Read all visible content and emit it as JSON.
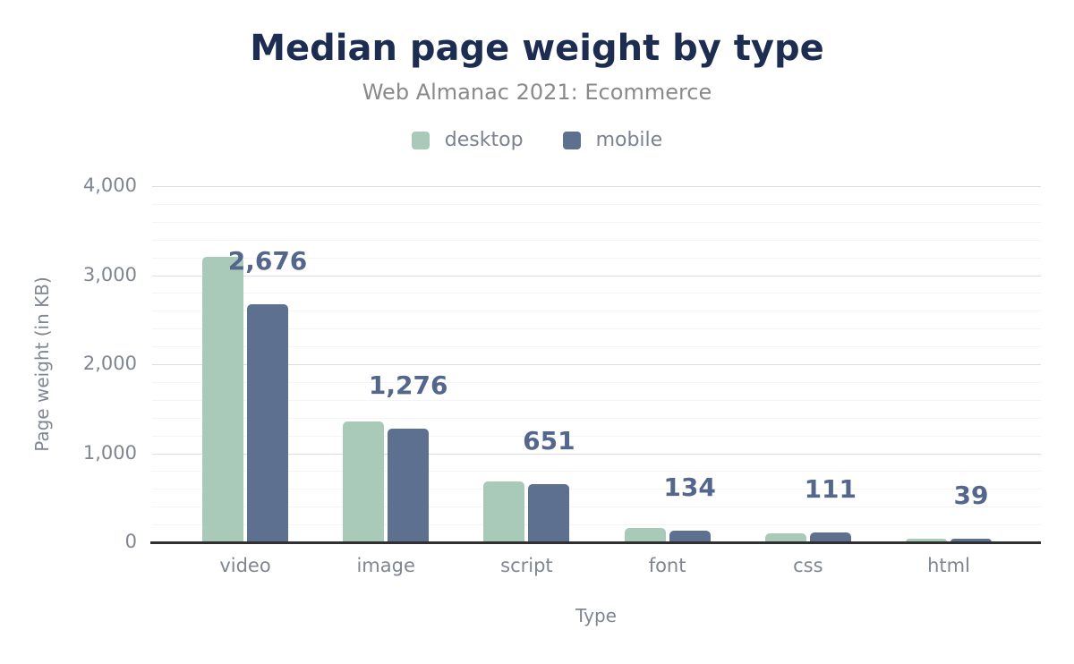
{
  "chart_data": {
    "type": "bar",
    "title": "Median page weight by type",
    "subtitle": "Web Almanac 2021: Ecommerce",
    "xlabel": "Type",
    "ylabel": "Page weight (in KB)",
    "categories": [
      "video",
      "image",
      "script",
      "font",
      "css",
      "html"
    ],
    "series": [
      {
        "name": "desktop",
        "color": "#a9cab8",
        "values": [
          3210,
          1356,
          680,
          158,
          105,
          42
        ],
        "values_estimated_from_bar_heights": true
      },
      {
        "name": "mobile",
        "color": "#5e7090",
        "values": [
          2676,
          1276,
          651,
          134,
          111,
          39
        ],
        "value_labels": [
          "2,676",
          "1,276",
          "651",
          "134",
          "111",
          "39"
        ]
      }
    ],
    "ylim": [
      0,
      4000
    ],
    "yticks": {
      "values": [
        0,
        1000,
        2000,
        3000,
        4000
      ],
      "labels": [
        "0",
        "1,000",
        "2,000",
        "3,000",
        "4,000"
      ]
    },
    "minor_grid_step": 200,
    "grid": true,
    "legend_position": "top",
    "value_labels_series": "mobile"
  },
  "colors": {
    "background": "#ffffff",
    "title": "#1d2d51",
    "subtitle": "#8a8a8a",
    "axis_text": "#7f8692",
    "legend_text": "#7b8290",
    "data_label": "#54668c",
    "major_grid": "#dedede",
    "minor_grid": "#f4f4f4",
    "axis_line": "#303030",
    "desktop_bar": "#a9cab8",
    "mobile_bar": "#5e7090"
  }
}
